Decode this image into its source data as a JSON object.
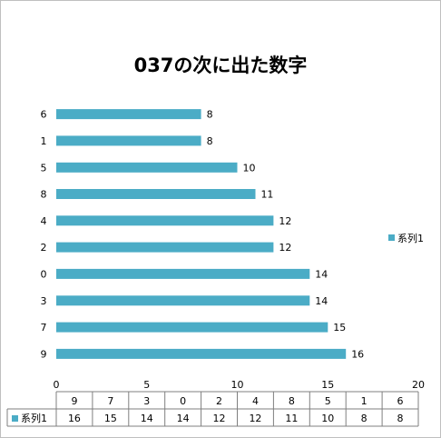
{
  "chart_data": {
    "type": "bar",
    "orientation": "horizontal",
    "title": "037の次に出た数字",
    "categories": [
      "9",
      "7",
      "3",
      "0",
      "2",
      "4",
      "8",
      "5",
      "1",
      "6"
    ],
    "series": [
      {
        "name": "系列1",
        "values": [
          16,
          15,
          14,
          14,
          12,
          12,
          11,
          10,
          8,
          8
        ],
        "color": "#4bacc6"
      }
    ],
    "xlim": [
      0,
      20
    ],
    "x_ticks": [
      0,
      5,
      10,
      15,
      20
    ],
    "grid": false,
    "legend_position": "right",
    "data_table": true,
    "data_labels": true
  }
}
